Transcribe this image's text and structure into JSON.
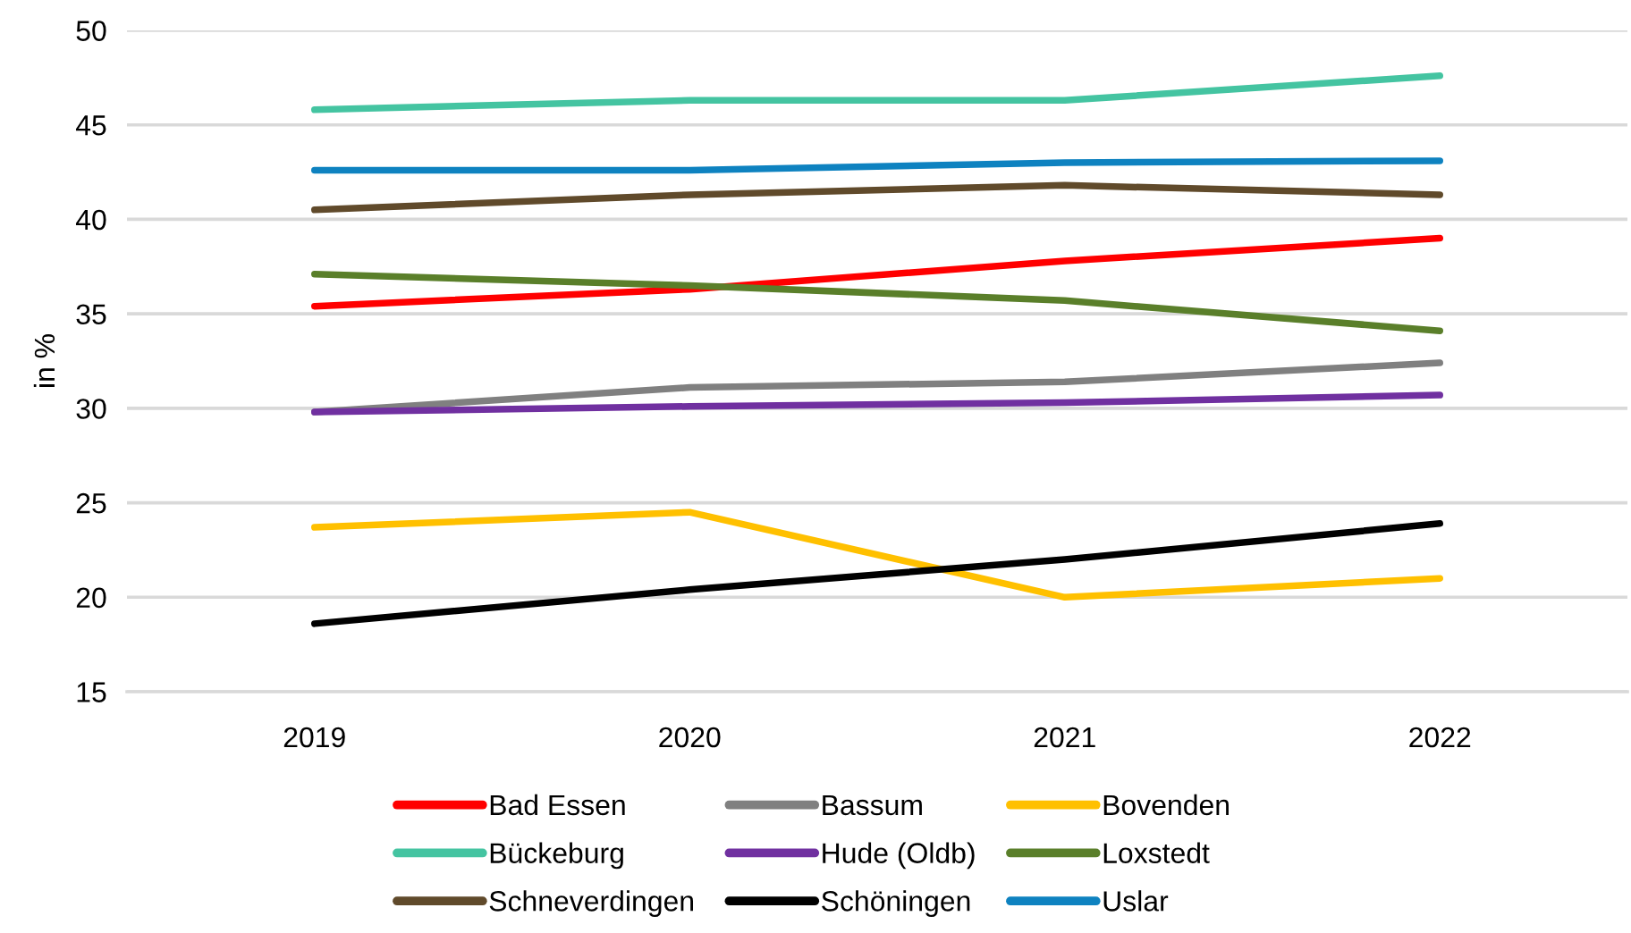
{
  "chart_data": {
    "type": "line",
    "ylabel": "in %",
    "categories": [
      "2019",
      "2020",
      "2021",
      "2022"
    ],
    "series": [
      {
        "name": "Bad Essen",
        "color": "#ff0000",
        "values": [
          35.4,
          36.3,
          37.8,
          39.0
        ]
      },
      {
        "name": "Bassum",
        "color": "#808080",
        "values": [
          29.8,
          31.1,
          31.4,
          32.4
        ]
      },
      {
        "name": "Bovenden",
        "color": "#ffc000",
        "values": [
          23.7,
          24.5,
          20.0,
          21.0
        ]
      },
      {
        "name": "Bückeburg",
        "color": "#44c4a1",
        "values": [
          45.8,
          46.3,
          46.3,
          47.6
        ]
      },
      {
        "name": "Hude (Oldb)",
        "color": "#7030a0",
        "values": [
          29.8,
          30.1,
          30.3,
          30.7
        ]
      },
      {
        "name": "Loxstedt",
        "color": "#5a7f2a",
        "values": [
          37.1,
          36.5,
          35.7,
          34.1
        ]
      },
      {
        "name": "Schneverdingen",
        "color": "#604a2b",
        "values": [
          40.5,
          41.3,
          41.8,
          41.3
        ]
      },
      {
        "name": "Schöningen",
        "color": "#000000",
        "values": [
          18.6,
          20.4,
          22.0,
          23.9
        ]
      },
      {
        "name": "Uslar",
        "color": "#0e82c0",
        "values": [
          42.6,
          42.6,
          43.0,
          43.1
        ]
      }
    ],
    "ylim": [
      15,
      50
    ],
    "yticks": [
      15,
      20,
      25,
      30,
      35,
      40,
      45,
      50
    ],
    "grid": "y",
    "legend": "bottom",
    "line_style": "solid"
  }
}
